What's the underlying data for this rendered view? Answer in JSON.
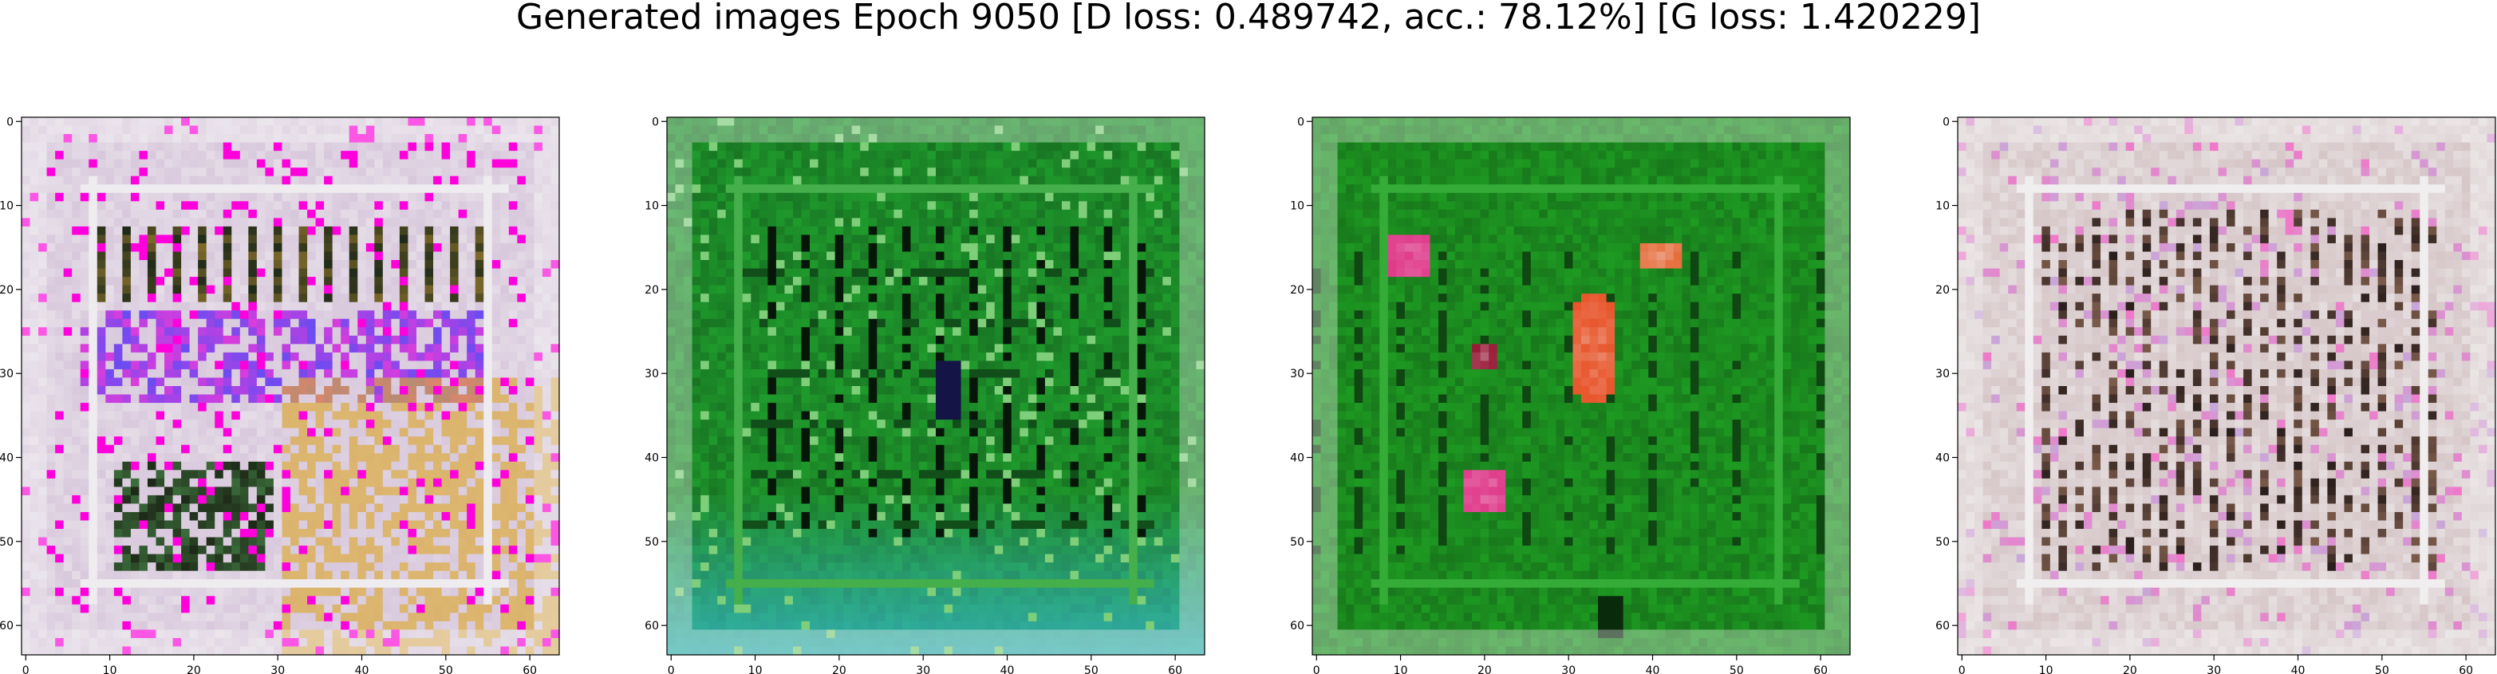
{
  "title": "Generated images Epoch 9050 [D loss: 0.489742, acc.: 78.12%] [G loss: 1.420229]",
  "chart_data": [
    {
      "type": "heatmap",
      "image_theme": "multicolor",
      "xlim": [
        0,
        64
      ],
      "ylim": [
        64,
        0
      ],
      "xticks": [
        0,
        10,
        20,
        30,
        40,
        50,
        60
      ],
      "yticks": [
        0,
        10,
        20,
        30,
        40,
        50,
        60
      ],
      "xticklabels": [
        "0",
        "10",
        "20",
        "30",
        "40",
        "50",
        "60"
      ],
      "yticklabels": [
        "0",
        "10",
        "20",
        "30",
        "40",
        "50",
        "60"
      ],
      "grid": false,
      "colors": {
        "base": "#d8c8dc",
        "accent1": "#6a4cf0",
        "accent2": "#d9a63c",
        "dark": "#1e2a18"
      }
    },
    {
      "type": "heatmap",
      "image_theme": "green-cyan",
      "xlim": [
        0,
        64
      ],
      "ylim": [
        64,
        0
      ],
      "xticks": [
        0,
        10,
        20,
        30,
        40,
        50,
        60
      ],
      "yticks": [
        0,
        10,
        20,
        30,
        40,
        50,
        60
      ],
      "xticklabels": [
        "0",
        "10",
        "20",
        "30",
        "40",
        "50",
        "60"
      ],
      "yticklabels": [
        "0",
        "10",
        "20",
        "30",
        "40",
        "50",
        "60"
      ],
      "grid": false,
      "colors": {
        "base": "#1f9a2c",
        "accent1": "#36b5c2",
        "accent2": "#7fcf7a",
        "dark": "#0b2d12"
      }
    },
    {
      "type": "heatmap",
      "image_theme": "green-red",
      "xlim": [
        0,
        64
      ],
      "ylim": [
        64,
        0
      ],
      "xticks": [
        0,
        10,
        20,
        30,
        40,
        50,
        60
      ],
      "yticks": [
        0,
        10,
        20,
        30,
        40,
        50,
        60
      ],
      "xticklabels": [
        "0",
        "10",
        "20",
        "30",
        "40",
        "50",
        "60"
      ],
      "yticklabels": [
        "0",
        "10",
        "20",
        "30",
        "40",
        "50",
        "60"
      ],
      "grid": false,
      "colors": {
        "base": "#1e9a22",
        "accent1": "#e8562c",
        "accent2": "#e03c8c",
        "dark": "#0a2a0c"
      }
    },
    {
      "type": "heatmap",
      "image_theme": "pastel-noise",
      "xlim": [
        0,
        64
      ],
      "ylim": [
        64,
        0
      ],
      "xticks": [
        0,
        10,
        20,
        30,
        40,
        50,
        60
      ],
      "yticks": [
        0,
        10,
        20,
        30,
        40,
        50,
        60
      ],
      "xticklabels": [
        "0",
        "10",
        "20",
        "30",
        "40",
        "50",
        "60"
      ],
      "yticklabels": [
        "0",
        "10",
        "20",
        "30",
        "40",
        "50",
        "60"
      ],
      "grid": false,
      "colors": {
        "base": "#d6c6c8",
        "accent1": "#7a5a4a",
        "accent2": "#c8a8d8",
        "dark": "#2a1e1c"
      }
    }
  ]
}
